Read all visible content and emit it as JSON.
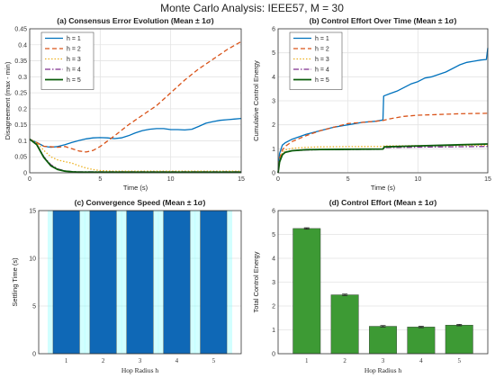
{
  "figure_title": "Monte Carlo Analysis: IEEE57, M = 30",
  "chart_data": [
    {
      "type": "line",
      "title": "(a) Consensus Error Evolution (Mean ± 1σ)",
      "xlabel": "Time (s)",
      "ylabel": "Disagreement (max - min)",
      "xlim": [
        0,
        15
      ],
      "ylim": [
        0,
        0.45
      ],
      "xticks": [
        "0",
        "5",
        "10",
        "15"
      ],
      "yticks": [
        "0",
        "0.05",
        "0.1",
        "0.15",
        "0.2",
        "0.25",
        "0.3",
        "0.35",
        "0.4",
        "0.45"
      ],
      "grid": true,
      "legend": "top-left",
      "series": [
        {
          "name": "h = 1",
          "color": "#0072bd",
          "dash": "solid",
          "x": [
            0,
            0.5,
            1,
            1.5,
            2,
            2.5,
            3,
            3.5,
            4,
            4.5,
            5,
            5.5,
            6,
            6.5,
            7,
            7.5,
            8,
            8.5,
            9,
            9.5,
            10,
            10.5,
            11,
            11.5,
            12,
            12.5,
            13,
            13.5,
            14,
            14.5,
            15
          ],
          "y": [
            0.105,
            0.095,
            0.083,
            0.08,
            0.082,
            0.088,
            0.095,
            0.101,
            0.106,
            0.109,
            0.11,
            0.109,
            0.107,
            0.109,
            0.116,
            0.125,
            0.132,
            0.136,
            0.138,
            0.138,
            0.135,
            0.135,
            0.134,
            0.136,
            0.145,
            0.155,
            0.16,
            0.164,
            0.166,
            0.168,
            0.17
          ]
        },
        {
          "name": "h = 2",
          "color": "#d95319",
          "dash": "dashed",
          "x": [
            0,
            1,
            2,
            2.5,
            3,
            3.5,
            4,
            4.5,
            5,
            6,
            7,
            8,
            9,
            10,
            11,
            12,
            13,
            14,
            15
          ],
          "y": [
            0.105,
            0.083,
            0.08,
            0.082,
            0.075,
            0.068,
            0.065,
            0.07,
            0.082,
            0.115,
            0.15,
            0.18,
            0.21,
            0.25,
            0.29,
            0.325,
            0.355,
            0.385,
            0.41
          ]
        },
        {
          "name": "h = 3",
          "color": "#edb120",
          "dash": "dotted",
          "x": [
            0,
            0.5,
            1,
            1.5,
            2,
            2.5,
            3,
            3.5,
            4,
            4.5,
            5,
            6,
            8,
            10,
            12,
            15
          ],
          "y": [
            0.105,
            0.095,
            0.07,
            0.05,
            0.04,
            0.035,
            0.03,
            0.022,
            0.015,
            0.01,
            0.007,
            0.005,
            0.005,
            0.005,
            0.005,
            0.005
          ]
        },
        {
          "name": "h = 4",
          "color": "#7e2f8e",
          "dash": "dashdot",
          "x": [
            0,
            0.5,
            1,
            1.5,
            2,
            2.5,
            3,
            3.5,
            4,
            5,
            6,
            8,
            10,
            12,
            15
          ],
          "y": [
            0.105,
            0.09,
            0.05,
            0.025,
            0.012,
            0.006,
            0.004,
            0.003,
            0.003,
            0.003,
            0.003,
            0.003,
            0.003,
            0.003,
            0.003
          ]
        },
        {
          "name": "h = 5",
          "color": "#0a5c0a",
          "dash": "solid",
          "x": [
            0,
            0.5,
            1,
            1.5,
            2,
            2.5,
            3,
            3.5,
            4,
            5,
            6,
            8,
            10,
            12,
            15
          ],
          "y": [
            0.105,
            0.088,
            0.048,
            0.022,
            0.01,
            0.005,
            0.003,
            0.002,
            0.002,
            0.002,
            0.002,
            0.002,
            0.002,
            0.002,
            0.002
          ]
        }
      ]
    },
    {
      "type": "line",
      "title": "(b) Control Effort Over Time (Mean ± 1σ)",
      "xlabel": "Time (s)",
      "ylabel": "Cumulative Control Energy",
      "xlim": [
        0,
        15
      ],
      "ylim": [
        0,
        6
      ],
      "xticks": [
        "0",
        "5",
        "10",
        "15"
      ],
      "yticks": [
        "0",
        "1",
        "2",
        "3",
        "4",
        "5",
        "6"
      ],
      "grid": true,
      "legend": "top-left",
      "series": [
        {
          "name": "h = 1",
          "color": "#0072bd",
          "dash": "solid",
          "x": [
            0,
            0.1,
            0.3,
            0.5,
            1,
            1.5,
            2,
            3,
            4,
            5,
            6,
            7,
            7.5,
            7.55,
            8,
            8.5,
            9,
            9.5,
            10,
            10.5,
            11,
            12,
            13,
            13.5,
            14,
            14.5,
            14.9,
            15
          ],
          "y": [
            0,
            0.8,
            1.15,
            1.25,
            1.4,
            1.5,
            1.6,
            1.75,
            1.9,
            2.0,
            2.1,
            2.15,
            2.2,
            3.2,
            3.3,
            3.4,
            3.55,
            3.7,
            3.8,
            3.95,
            4.0,
            4.2,
            4.5,
            4.6,
            4.65,
            4.7,
            4.72,
            5.2
          ]
        },
        {
          "name": "h = 2",
          "color": "#d95319",
          "dash": "dashed",
          "x": [
            0,
            0.1,
            0.3,
            0.5,
            1,
            2,
            3,
            4,
            5,
            6,
            7,
            7.5,
            8,
            9,
            10,
            11,
            12,
            13,
            14,
            15
          ],
          "y": [
            0,
            0.6,
            0.95,
            1.1,
            1.3,
            1.55,
            1.75,
            1.9,
            2.05,
            2.1,
            2.15,
            2.18,
            2.25,
            2.35,
            2.4,
            2.42,
            2.44,
            2.46,
            2.47,
            2.48
          ]
        },
        {
          "name": "h = 3",
          "color": "#edb120",
          "dash": "dotted",
          "x": [
            0,
            0.1,
            0.3,
            0.5,
            1,
            2,
            3,
            5,
            7.5,
            7.6,
            10,
            15
          ],
          "y": [
            0,
            0.5,
            0.85,
            0.95,
            1.02,
            1.06,
            1.08,
            1.09,
            1.1,
            1.12,
            1.13,
            1.15
          ]
        },
        {
          "name": "h = 4",
          "color": "#7e2f8e",
          "dash": "dashdot",
          "x": [
            0,
            0.1,
            0.3,
            0.5,
            1,
            2,
            3,
            5,
            7.5,
            7.6,
            10,
            15
          ],
          "y": [
            0,
            0.45,
            0.75,
            0.85,
            0.92,
            0.95,
            0.96,
            0.97,
            0.98,
            1.05,
            1.07,
            1.1
          ]
        },
        {
          "name": "h = 5",
          "color": "#0a5c0a",
          "dash": "solid",
          "x": [
            0,
            0.1,
            0.3,
            0.5,
            1,
            2,
            3,
            5,
            7.5,
            7.6,
            10,
            12,
            15
          ],
          "y": [
            0,
            0.45,
            0.75,
            0.85,
            0.92,
            0.96,
            0.97,
            0.98,
            0.99,
            1.08,
            1.12,
            1.15,
            1.2
          ]
        }
      ]
    },
    {
      "type": "bar",
      "title": "(c) Convergence Speed (Mean ± 1σ)",
      "xlabel": "Hop Radius h",
      "ylabel": "Settling Time (s)",
      "ylim": [
        0,
        15
      ],
      "yticks": [
        "0",
        "5",
        "10",
        "15"
      ],
      "categories": [
        "1",
        "2",
        "3",
        "4",
        "5"
      ],
      "values": [
        15,
        15,
        15,
        15,
        15
      ],
      "bar_color": "#0f68b6",
      "error_color": "#7fffff",
      "grid": true
    },
    {
      "type": "bar",
      "title": "(d) Control Effort (Mean ± 1σ)",
      "xlabel": "Hop Radius h",
      "ylabel": "Total Control Energy",
      "ylim": [
        0,
        6
      ],
      "yticks": [
        "0",
        "1",
        "2",
        "3",
        "4",
        "5",
        "6"
      ],
      "categories": [
        "1",
        "2",
        "3",
        "4",
        "5"
      ],
      "values": [
        5.25,
        2.47,
        1.15,
        1.12,
        1.2
      ],
      "errors": [
        0.03,
        0.03,
        0.03,
        0.03,
        0.03
      ],
      "bar_color": "#3d9a34",
      "grid": true
    }
  ]
}
